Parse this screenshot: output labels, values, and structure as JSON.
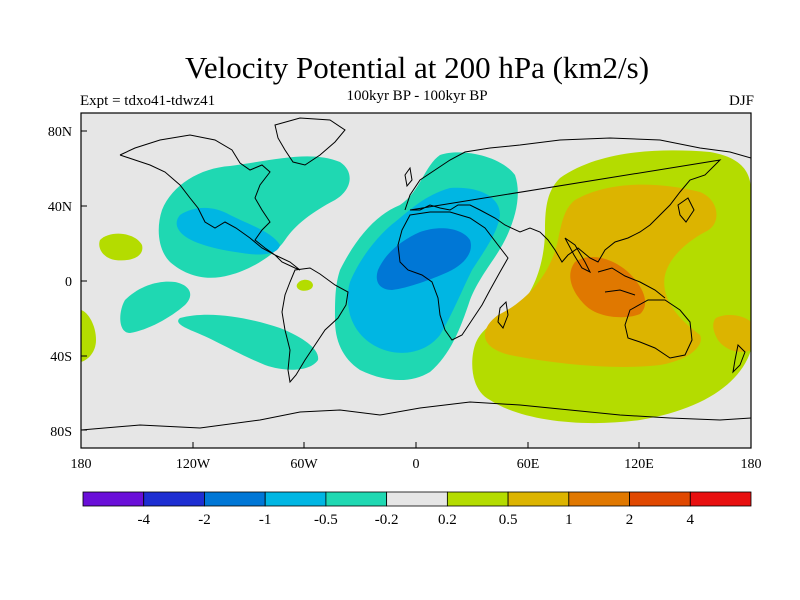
{
  "header": {
    "title": "Velocity Potential at 200 hPa (km2/s)",
    "subtitle": "100kyr BP - 100kyr BP",
    "experiment": "Expt = tdxo41-tdwz41",
    "season": "DJF"
  },
  "axes": {
    "x_ticks": [
      "180",
      "120W",
      "60W",
      "0",
      "60E",
      "120E",
      "180"
    ],
    "y_ticks": [
      "80N",
      "40N",
      "0",
      "40S",
      "80S"
    ]
  },
  "colorbar": {
    "colors": [
      "#6a0fd8",
      "#1e2ed2",
      "#0077d6",
      "#00b6e3",
      "#1fd8b2",
      "#e6e6e6",
      "#b4dc00",
      "#dcb400",
      "#e07800",
      "#e04800",
      "#e81010"
    ],
    "labels": [
      "-4",
      "-2",
      "-1",
      "-0.5",
      "-0.2",
      "0.2",
      "0.5",
      "1",
      "2",
      "4"
    ]
  },
  "chart_data": {
    "type": "heatmap",
    "title": "Velocity Potential at 200 hPa (km2/s)",
    "subtitle": "100kyr BP - 100kyr BP",
    "field": "velocity potential difference at 200 hPa",
    "units": "km2/s",
    "season": "DJF",
    "projection": "cylindrical equidistant",
    "xlim": [
      -180,
      180
    ],
    "ylim": [
      -90,
      90
    ],
    "contour_levels": [
      -4,
      -2,
      -1,
      -0.5,
      -0.2,
      0.2,
      0.5,
      1,
      2,
      4
    ],
    "features": [
      {
        "name": "negative center",
        "region": "tropical Atlantic / West Africa",
        "approx_value": -1
      },
      {
        "name": "negative lobe",
        "region": "North America / North Atlantic",
        "approx_value": -0.5
      },
      {
        "name": "positive center",
        "region": "Maritime Continent",
        "approx_value": 1
      },
      {
        "name": "positive lobe",
        "region": "East Asia / West Pacific",
        "approx_value": 0.5
      }
    ]
  }
}
